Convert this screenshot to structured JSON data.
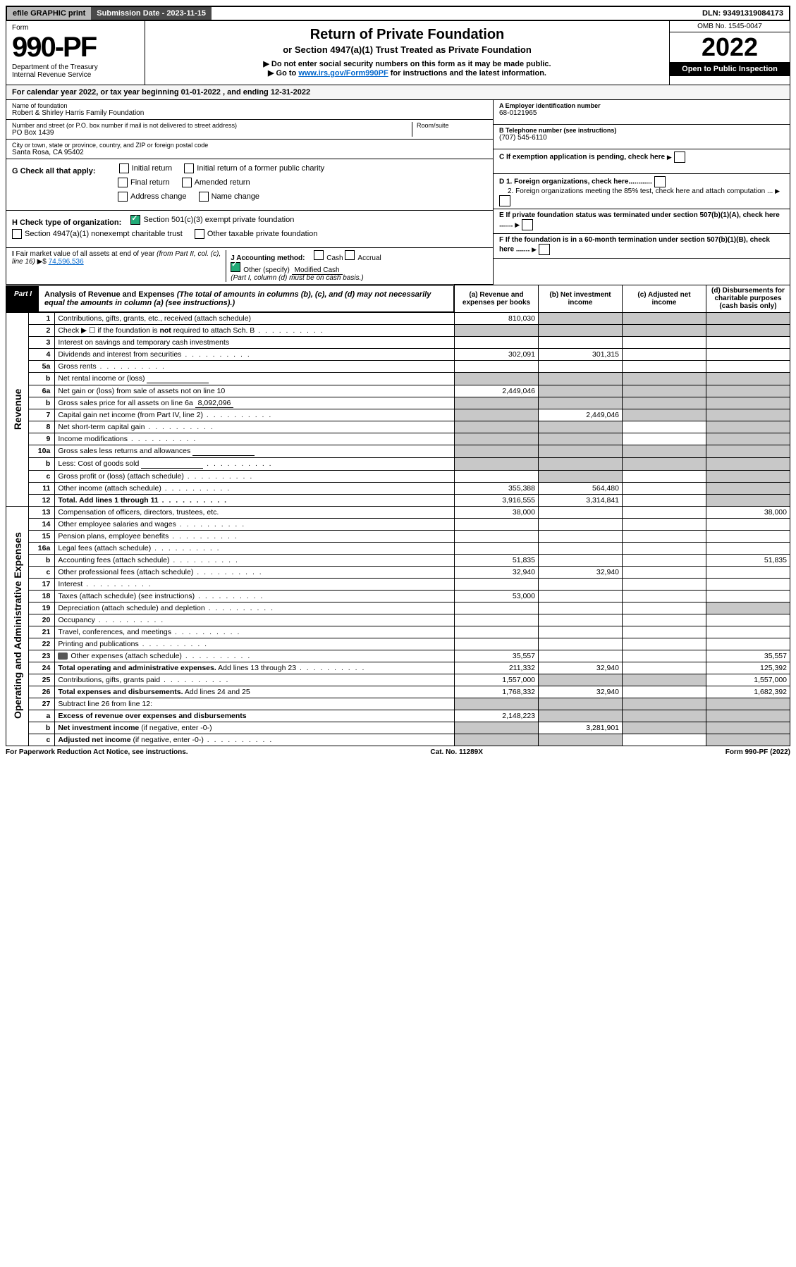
{
  "topbar": {
    "efile_label": "efile GRAPHIC print",
    "submission_label": "Submission Date - 2023-11-15",
    "dln_label": "DLN: 93491319084173"
  },
  "header": {
    "form_word": "Form",
    "form_number": "990-PF",
    "dept": "Department of the Treasury",
    "irs": "Internal Revenue Service",
    "title": "Return of Private Foundation",
    "subtitle": "or Section 4947(a)(1) Trust Treated as Private Foundation",
    "note1": "▶ Do not enter social security numbers on this form as it may be made public.",
    "note2_prefix": "▶ Go to ",
    "note2_link": "www.irs.gov/Form990PF",
    "note2_suffix": " for instructions and the latest information.",
    "omb": "OMB No. 1545-0047",
    "year": "2022",
    "open": "Open to Public Inspection"
  },
  "calendar": {
    "prefix": "For calendar year 2022, or tax year beginning ",
    "begin": "01-01-2022",
    "mid": " , and ending ",
    "end": "12-31-2022"
  },
  "identity": {
    "name_label": "Name of foundation",
    "name": "Robert & Shirley Harris Family Foundation",
    "addr_label": "Number and street (or P.O. box number if mail is not delivered to street address)",
    "addr": "PO Box 1439",
    "room_label": "Room/suite",
    "city_label": "City or town, state or province, country, and ZIP or foreign postal code",
    "city": "Santa Rosa, CA  95402",
    "ein_label": "A Employer identification number",
    "ein": "68-0121965",
    "tel_label": "B Telephone number (see instructions)",
    "tel": "(707) 545-6110",
    "c_label": "C If exemption application is pending, check here",
    "d1": "D 1. Foreign organizations, check here............",
    "d2": "2. Foreign organizations meeting the 85% test, check here and attach computation ...",
    "e_label": "E  If private foundation status was terminated under section 507(b)(1)(A), check here .......",
    "f_label": "F  If the foundation is in a 60-month termination under section 507(b)(1)(B), check here .......",
    "g_label": "G Check all that apply:",
    "g_opts": [
      "Initial return",
      "Initial return of a former public charity",
      "Final return",
      "Amended return",
      "Address change",
      "Name change"
    ],
    "h_label": "H Check type of organization:",
    "h_opts": [
      "Section 501(c)(3) exempt private foundation",
      "Section 4947(a)(1) nonexempt charitable trust",
      "Other taxable private foundation"
    ],
    "i_label": "I Fair market value of all assets at end of year (from Part II, col. (c), line 16) ▶$",
    "i_value": "74,596,536",
    "j_label": "J Accounting method:",
    "j_opts": [
      "Cash",
      "Accrual"
    ],
    "j_other": "Other (specify)",
    "j_other_val": "Modified Cash",
    "j_note": "(Part I, column (d) must be on cash basis.)"
  },
  "part1": {
    "tag": "Part I",
    "title": "Analysis of Revenue and Expenses",
    "note": " (The total of amounts in columns (b), (c), and (d) may not necessarily equal the amounts in column (a) (see instructions).)",
    "cols": {
      "a": "(a) Revenue and expenses per books",
      "b": "(b) Net investment income",
      "c": "(c) Adjusted net income",
      "d": "(d) Disbursements for charitable purposes (cash basis only)"
    }
  },
  "sections": {
    "revenue": "Revenue",
    "expenses": "Operating and Administrative Expenses"
  },
  "lines": [
    {
      "sec": "rev",
      "n": "1",
      "d": "Contributions, gifts, grants, etc., received (attach schedule)",
      "a": "810,030",
      "shade": [
        "b",
        "c",
        "d"
      ]
    },
    {
      "sec": "rev",
      "n": "2",
      "d": "Check ▶ ☐ if the foundation is <b>not</b> required to attach Sch. B",
      "shade": [
        "a",
        "b",
        "c",
        "d"
      ],
      "dots": true
    },
    {
      "sec": "rev",
      "n": "3",
      "d": "Interest on savings and temporary cash investments"
    },
    {
      "sec": "rev",
      "n": "4",
      "d": "Dividends and interest from securities",
      "a": "302,091",
      "b": "301,315",
      "dots": true
    },
    {
      "sec": "rev",
      "n": "5a",
      "d": "Gross rents",
      "dots": true
    },
    {
      "sec": "rev",
      "n": "b",
      "d": "Net rental income or (loss)",
      "shade": [
        "a",
        "b",
        "c",
        "d"
      ],
      "inline_box": true
    },
    {
      "sec": "rev",
      "n": "6a",
      "d": "Net gain or (loss) from sale of assets not on line 10",
      "a": "2,449,046",
      "shade": [
        "b",
        "c",
        "d"
      ]
    },
    {
      "sec": "rev",
      "n": "b",
      "d": "Gross sales price for all assets on line 6a",
      "inline_val": "8,092,096",
      "shade": [
        "a",
        "b",
        "c",
        "d"
      ]
    },
    {
      "sec": "rev",
      "n": "7",
      "d": "Capital gain net income (from Part IV, line 2)",
      "b": "2,449,046",
      "shade": [
        "a",
        "c",
        "d"
      ],
      "dots": true
    },
    {
      "sec": "rev",
      "n": "8",
      "d": "Net short-term capital gain",
      "shade": [
        "a",
        "b",
        "d"
      ],
      "dots": true
    },
    {
      "sec": "rev",
      "n": "9",
      "d": "Income modifications",
      "shade": [
        "a",
        "b",
        "d"
      ],
      "dots": true
    },
    {
      "sec": "rev",
      "n": "10a",
      "d": "Gross sales less returns and allowances",
      "shade": [
        "a",
        "b",
        "c",
        "d"
      ],
      "inline_box": true
    },
    {
      "sec": "rev",
      "n": "b",
      "d": "Less: Cost of goods sold",
      "shade": [
        "a",
        "b",
        "c",
        "d"
      ],
      "inline_box": true,
      "dots": true
    },
    {
      "sec": "rev",
      "n": "c",
      "d": "Gross profit or (loss) (attach schedule)",
      "shade": [
        "b",
        "d"
      ],
      "dots": true
    },
    {
      "sec": "rev",
      "n": "11",
      "d": "Other income (attach schedule)",
      "a": "355,388",
      "b": "564,480",
      "shade": [
        "d"
      ],
      "dots": true
    },
    {
      "sec": "rev",
      "n": "12",
      "d": "<b>Total.</b> Add lines 1 through 11",
      "a": "3,916,555",
      "b": "3,314,841",
      "shade": [
        "d"
      ],
      "dots": true,
      "bold": true
    },
    {
      "sec": "exp",
      "n": "13",
      "d": "Compensation of officers, directors, trustees, etc.",
      "a": "38,000",
      "dval": "38,000"
    },
    {
      "sec": "exp",
      "n": "14",
      "d": "Other employee salaries and wages",
      "dots": true
    },
    {
      "sec": "exp",
      "n": "15",
      "d": "Pension plans, employee benefits",
      "dots": true
    },
    {
      "sec": "exp",
      "n": "16a",
      "d": "Legal fees (attach schedule)",
      "dots": true
    },
    {
      "sec": "exp",
      "n": "b",
      "d": "Accounting fees (attach schedule)",
      "a": "51,835",
      "dval": "51,835",
      "dots": true
    },
    {
      "sec": "exp",
      "n": "c",
      "d": "Other professional fees (attach schedule)",
      "a": "32,940",
      "b": "32,940",
      "dots": true
    },
    {
      "sec": "exp",
      "n": "17",
      "d": "Interest",
      "dots": true
    },
    {
      "sec": "exp",
      "n": "18",
      "d": "Taxes (attach schedule) (see instructions)",
      "a": "53,000",
      "dots": true
    },
    {
      "sec": "exp",
      "n": "19",
      "d": "Depreciation (attach schedule) and depletion",
      "shade": [
        "d"
      ],
      "dots": true
    },
    {
      "sec": "exp",
      "n": "20",
      "d": "Occupancy",
      "dots": true
    },
    {
      "sec": "exp",
      "n": "21",
      "d": "Travel, conferences, and meetings",
      "dots": true
    },
    {
      "sec": "exp",
      "n": "22",
      "d": "Printing and publications",
      "dots": true
    },
    {
      "sec": "exp",
      "n": "23",
      "d": "Other expenses (attach schedule)",
      "a": "35,557",
      "dval": "35,557",
      "icon": true,
      "dots": true
    },
    {
      "sec": "exp",
      "n": "24",
      "d": "<b>Total operating and administrative expenses.</b> Add lines 13 through 23",
      "a": "211,332",
      "b": "32,940",
      "dval": "125,392",
      "dots": true
    },
    {
      "sec": "exp",
      "n": "25",
      "d": "Contributions, gifts, grants paid",
      "a": "1,557,000",
      "dval": "1,557,000",
      "shade": [
        "b",
        "c"
      ],
      "dots": true
    },
    {
      "sec": "exp",
      "n": "26",
      "d": "<b>Total expenses and disbursements.</b> Add lines 24 and 25",
      "a": "1,768,332",
      "b": "32,940",
      "dval": "1,682,392"
    },
    {
      "sec": "end",
      "n": "27",
      "d": "Subtract line 26 from line 12:",
      "shade": [
        "a",
        "b",
        "c",
        "d"
      ]
    },
    {
      "sec": "end",
      "n": "a",
      "d": "<b>Excess of revenue over expenses and disbursements</b>",
      "a": "2,148,223",
      "shade": [
        "b",
        "c",
        "d"
      ]
    },
    {
      "sec": "end",
      "n": "b",
      "d": "<b>Net investment income</b> (if negative, enter -0-)",
      "b": "3,281,901",
      "shade": [
        "a",
        "c",
        "d"
      ]
    },
    {
      "sec": "end",
      "n": "c",
      "d": "<b>Adjusted net income</b> (if negative, enter -0-)",
      "shade": [
        "a",
        "b",
        "d"
      ],
      "dots": true
    }
  ],
  "footer": {
    "left": "For Paperwork Reduction Act Notice, see instructions.",
    "mid": "Cat. No. 11289X",
    "right": "Form 990-PF (2022)"
  }
}
